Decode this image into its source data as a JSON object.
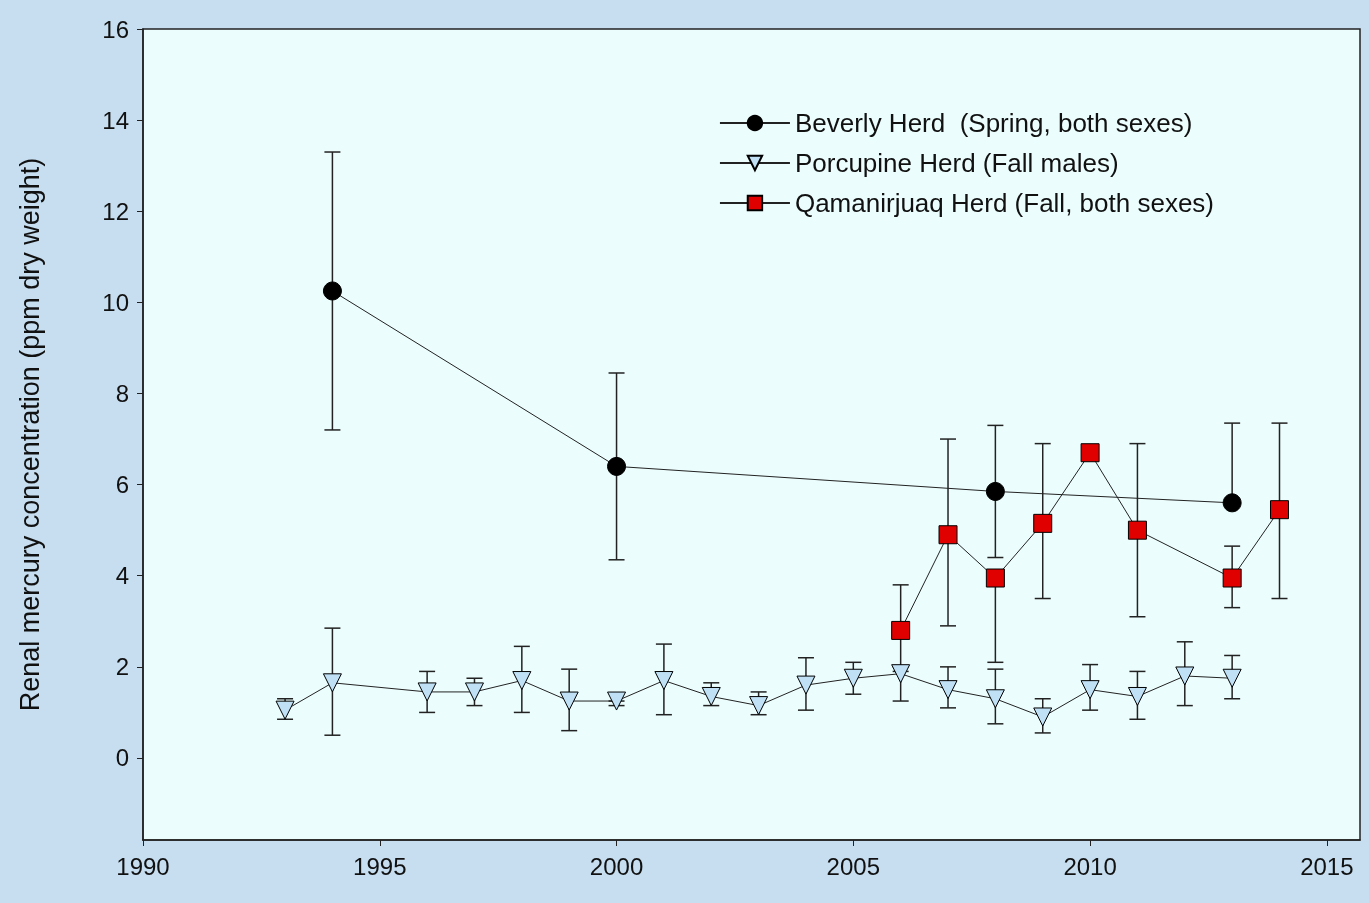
{
  "chart_data": {
    "type": "line",
    "ylabel": "Renal mercury concentration (ppm dry weight)",
    "xlim": [
      1990,
      2015.7
    ],
    "xticks": [
      1990,
      1995,
      2000,
      2005,
      2010,
      2015
    ],
    "ylim": [
      -1.8,
      16
    ],
    "yticks": [
      0,
      2,
      4,
      6,
      8,
      10,
      12,
      14,
      16
    ],
    "grid": false,
    "legend": "top right",
    "series": [
      {
        "name": "Beverly Herd  (Spring, both sexes)",
        "color": "#000000",
        "marker": "circle",
        "x": [
          1994,
          2000,
          2008,
          2013
        ],
        "values": [
          10.25,
          6.4,
          5.85,
          5.6
        ],
        "errors": [
          [
            7.2,
            13.3
          ],
          [
            4.35,
            8.45
          ],
          [
            4.4,
            7.3
          ],
          [
            5.6,
            7.35
          ]
        ]
      },
      {
        "name": "Porcupine Herd (Fall males)",
        "color": "#bfe0f5",
        "marker": "triangle",
        "x": [
          1993,
          1994,
          1996,
          1997,
          1998,
          1999,
          2000,
          2001,
          2002,
          2003,
          2004,
          2005,
          2006,
          2007,
          2008,
          2009,
          2010,
          2011,
          2012,
          2013
        ],
        "values": [
          1.05,
          1.65,
          1.45,
          1.45,
          1.7,
          1.25,
          1.25,
          1.7,
          1.35,
          1.15,
          1.6,
          1.75,
          1.85,
          1.5,
          1.3,
          0.9,
          1.5,
          1.35,
          1.8,
          1.75
        ],
        "errors": [
          [
            0.85,
            1.3
          ],
          [
            0.5,
            2.85
          ],
          [
            1.0,
            1.9
          ],
          [
            1.15,
            1.75
          ],
          [
            1.0,
            2.45
          ],
          [
            0.6,
            1.95
          ],
          [
            1.15,
            1.25
          ],
          [
            0.95,
            2.5
          ],
          [
            1.15,
            1.65
          ],
          [
            0.95,
            1.45
          ],
          [
            1.05,
            2.2
          ],
          [
            1.4,
            2.1
          ],
          [
            1.25,
            2.0
          ],
          [
            1.1,
            2.0
          ],
          [
            0.75,
            1.95
          ],
          [
            0.55,
            1.3
          ],
          [
            1.05,
            2.05
          ],
          [
            0.85,
            1.9
          ],
          [
            1.15,
            2.55
          ],
          [
            1.3,
            2.25
          ]
        ]
      },
      {
        "name": "Qamanirjuaq Herd (Fall, both sexes)",
        "color": "#e00000",
        "marker": "square",
        "x": [
          2006,
          2007,
          2008,
          2009,
          2010,
          2011,
          2013,
          2014
        ],
        "values": [
          2.8,
          4.9,
          3.95,
          5.15,
          6.7,
          5.0,
          3.95,
          5.45
        ],
        "errors": [
          [
            1.9,
            3.8
          ],
          [
            2.9,
            7.0
          ],
          [
            2.1,
            3.95
          ],
          [
            3.5,
            6.9
          ],
          null,
          [
            3.1,
            6.9
          ],
          [
            3.3,
            4.65
          ],
          [
            3.5,
            7.35
          ]
        ]
      }
    ]
  }
}
